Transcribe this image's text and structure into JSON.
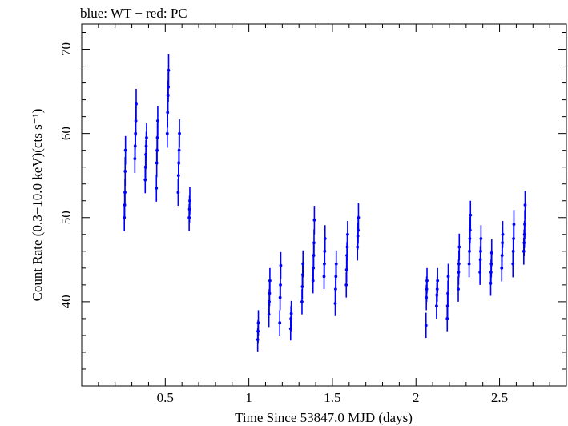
{
  "header": {
    "title": "blue: WT − red: PC"
  },
  "colors": {
    "wt": "#0000ff",
    "pc": "#ff0000",
    "axis": "#000000"
  },
  "chart_data": {
    "type": "scatter",
    "title": "blue: WT − red: PC",
    "xlabel": "Time Since 53847.0 MJD (days)",
    "ylabel": "Count Rate (0.3−10.0 keV)(cts s⁻¹)",
    "xlim": [
      0.0,
      2.9
    ],
    "ylim": [
      30.0,
      73.0
    ],
    "xticks": [
      {
        "value": 0.5,
        "label": "0.5"
      },
      {
        "value": 1.0,
        "label": "1"
      },
      {
        "value": 1.5,
        "label": "1.5"
      },
      {
        "value": 2.0,
        "label": "2"
      },
      {
        "value": 2.5,
        "label": "2.5"
      }
    ],
    "yticks": [
      {
        "value": 40,
        "label": "40"
      },
      {
        "value": 50,
        "label": "50"
      },
      {
        "value": 60,
        "label": "60"
      },
      {
        "value": 70,
        "label": "70"
      }
    ],
    "grid": false,
    "series": [
      {
        "name": "WT",
        "color": "#0000ff",
        "points": [
          {
            "x": 0.255,
            "y": 50.0,
            "err": 1.6
          },
          {
            "x": 0.257,
            "y": 51.5,
            "err": 1.6
          },
          {
            "x": 0.259,
            "y": 53.0,
            "err": 1.6
          },
          {
            "x": 0.26,
            "y": 55.5,
            "err": 1.7
          },
          {
            "x": 0.262,
            "y": 58.0,
            "err": 1.7
          },
          {
            "x": 0.318,
            "y": 57.0,
            "err": 1.7
          },
          {
            "x": 0.32,
            "y": 58.5,
            "err": 1.7
          },
          {
            "x": 0.322,
            "y": 60.0,
            "err": 1.7
          },
          {
            "x": 0.324,
            "y": 61.5,
            "err": 1.8
          },
          {
            "x": 0.326,
            "y": 63.5,
            "err": 1.8
          },
          {
            "x": 0.38,
            "y": 54.5,
            "err": 1.6
          },
          {
            "x": 0.382,
            "y": 56.0,
            "err": 1.7
          },
          {
            "x": 0.384,
            "y": 57.5,
            "err": 1.7
          },
          {
            "x": 0.386,
            "y": 58.5,
            "err": 1.7
          },
          {
            "x": 0.388,
            "y": 59.5,
            "err": 1.7
          },
          {
            "x": 0.447,
            "y": 53.5,
            "err": 1.6
          },
          {
            "x": 0.449,
            "y": 56.5,
            "err": 1.7
          },
          {
            "x": 0.451,
            "y": 58.0,
            "err": 1.7
          },
          {
            "x": 0.453,
            "y": 59.5,
            "err": 1.7
          },
          {
            "x": 0.455,
            "y": 61.5,
            "err": 1.8
          },
          {
            "x": 0.512,
            "y": 60.0,
            "err": 1.7
          },
          {
            "x": 0.514,
            "y": 62.5,
            "err": 1.8
          },
          {
            "x": 0.516,
            "y": 64.5,
            "err": 1.8
          },
          {
            "x": 0.518,
            "y": 65.5,
            "err": 1.8
          },
          {
            "x": 0.52,
            "y": 67.5,
            "err": 1.9
          },
          {
            "x": 0.577,
            "y": 53.0,
            "err": 1.6
          },
          {
            "x": 0.579,
            "y": 55.0,
            "err": 1.7
          },
          {
            "x": 0.581,
            "y": 56.5,
            "err": 1.7
          },
          {
            "x": 0.583,
            "y": 58.0,
            "err": 1.7
          },
          {
            "x": 0.585,
            "y": 60.0,
            "err": 1.7
          },
          {
            "x": 0.643,
            "y": 50.0,
            "err": 1.6
          },
          {
            "x": 0.645,
            "y": 51.0,
            "err": 1.6
          },
          {
            "x": 0.647,
            "y": 52.0,
            "err": 1.6
          },
          {
            "x": 1.053,
            "y": 35.5,
            "err": 1.4
          },
          {
            "x": 1.055,
            "y": 36.5,
            "err": 1.4
          },
          {
            "x": 1.057,
            "y": 37.5,
            "err": 1.5
          },
          {
            "x": 1.12,
            "y": 38.5,
            "err": 1.5
          },
          {
            "x": 1.122,
            "y": 40.0,
            "err": 1.5
          },
          {
            "x": 1.124,
            "y": 41.0,
            "err": 1.5
          },
          {
            "x": 1.126,
            "y": 42.5,
            "err": 1.5
          },
          {
            "x": 1.185,
            "y": 37.5,
            "err": 1.5
          },
          {
            "x": 1.187,
            "y": 40.5,
            "err": 1.5
          },
          {
            "x": 1.189,
            "y": 42.0,
            "err": 1.5
          },
          {
            "x": 1.191,
            "y": 44.3,
            "err": 1.6
          },
          {
            "x": 1.25,
            "y": 36.8,
            "err": 1.4
          },
          {
            "x": 1.252,
            "y": 38.0,
            "err": 1.5
          },
          {
            "x": 1.254,
            "y": 38.6,
            "err": 1.5
          },
          {
            "x": 1.318,
            "y": 40.0,
            "err": 1.5
          },
          {
            "x": 1.32,
            "y": 41.8,
            "err": 1.5
          },
          {
            "x": 1.322,
            "y": 43.2,
            "err": 1.5
          },
          {
            "x": 1.324,
            "y": 44.5,
            "err": 1.6
          },
          {
            "x": 1.384,
            "y": 42.5,
            "err": 1.5
          },
          {
            "x": 1.386,
            "y": 44.0,
            "err": 1.6
          },
          {
            "x": 1.388,
            "y": 45.5,
            "err": 1.6
          },
          {
            "x": 1.39,
            "y": 47.0,
            "err": 1.6
          },
          {
            "x": 1.392,
            "y": 49.7,
            "err": 1.7
          },
          {
            "x": 1.45,
            "y": 43.0,
            "err": 1.5
          },
          {
            "x": 1.452,
            "y": 44.5,
            "err": 1.6
          },
          {
            "x": 1.454,
            "y": 46.0,
            "err": 1.6
          },
          {
            "x": 1.456,
            "y": 47.5,
            "err": 1.6
          },
          {
            "x": 1.517,
            "y": 39.8,
            "err": 1.5
          },
          {
            "x": 1.519,
            "y": 41.5,
            "err": 1.5
          },
          {
            "x": 1.521,
            "y": 43.0,
            "err": 1.5
          },
          {
            "x": 1.523,
            "y": 44.5,
            "err": 1.6
          },
          {
            "x": 1.583,
            "y": 42.0,
            "err": 1.5
          },
          {
            "x": 1.585,
            "y": 43.8,
            "err": 1.5
          },
          {
            "x": 1.587,
            "y": 45.5,
            "err": 1.6
          },
          {
            "x": 1.589,
            "y": 46.5,
            "err": 1.6
          },
          {
            "x": 1.591,
            "y": 48.0,
            "err": 1.6
          },
          {
            "x": 1.65,
            "y": 46.5,
            "err": 1.6
          },
          {
            "x": 1.652,
            "y": 47.8,
            "err": 1.6
          },
          {
            "x": 1.654,
            "y": 48.5,
            "err": 1.6
          },
          {
            "x": 1.656,
            "y": 50.0,
            "err": 1.7
          },
          {
            "x": 2.06,
            "y": 37.2,
            "err": 1.5
          },
          {
            "x": 2.062,
            "y": 40.5,
            "err": 1.5
          },
          {
            "x": 2.064,
            "y": 41.5,
            "err": 1.5
          },
          {
            "x": 2.066,
            "y": 42.5,
            "err": 1.5
          },
          {
            "x": 2.123,
            "y": 39.5,
            "err": 1.5
          },
          {
            "x": 2.125,
            "y": 40.8,
            "err": 1.5
          },
          {
            "x": 2.127,
            "y": 41.5,
            "err": 1.5
          },
          {
            "x": 2.129,
            "y": 42.5,
            "err": 1.5
          },
          {
            "x": 2.187,
            "y": 38.0,
            "err": 1.5
          },
          {
            "x": 2.189,
            "y": 39.5,
            "err": 1.5
          },
          {
            "x": 2.191,
            "y": 41.0,
            "err": 1.5
          },
          {
            "x": 2.193,
            "y": 43.0,
            "err": 1.5
          },
          {
            "x": 2.253,
            "y": 41.5,
            "err": 1.5
          },
          {
            "x": 2.255,
            "y": 43.5,
            "err": 1.5
          },
          {
            "x": 2.257,
            "y": 44.5,
            "err": 1.6
          },
          {
            "x": 2.259,
            "y": 46.5,
            "err": 1.6
          },
          {
            "x": 2.318,
            "y": 44.5,
            "err": 1.6
          },
          {
            "x": 2.32,
            "y": 46.0,
            "err": 1.6
          },
          {
            "x": 2.322,
            "y": 47.5,
            "err": 1.6
          },
          {
            "x": 2.324,
            "y": 48.5,
            "err": 1.6
          },
          {
            "x": 2.326,
            "y": 50.3,
            "err": 1.7
          },
          {
            "x": 2.383,
            "y": 43.5,
            "err": 1.5
          },
          {
            "x": 2.385,
            "y": 45.0,
            "err": 1.6
          },
          {
            "x": 2.387,
            "y": 46.0,
            "err": 1.6
          },
          {
            "x": 2.389,
            "y": 47.5,
            "err": 1.6
          },
          {
            "x": 2.447,
            "y": 42.2,
            "err": 1.5
          },
          {
            "x": 2.449,
            "y": 43.5,
            "err": 1.5
          },
          {
            "x": 2.451,
            "y": 44.5,
            "err": 1.6
          },
          {
            "x": 2.453,
            "y": 45.8,
            "err": 1.6
          },
          {
            "x": 2.513,
            "y": 44.0,
            "err": 1.6
          },
          {
            "x": 2.515,
            "y": 45.5,
            "err": 1.6
          },
          {
            "x": 2.517,
            "y": 47.0,
            "err": 1.6
          },
          {
            "x": 2.519,
            "y": 48.0,
            "err": 1.6
          },
          {
            "x": 2.58,
            "y": 44.5,
            "err": 1.6
          },
          {
            "x": 2.582,
            "y": 46.0,
            "err": 1.6
          },
          {
            "x": 2.584,
            "y": 47.5,
            "err": 1.6
          },
          {
            "x": 2.586,
            "y": 49.2,
            "err": 1.7
          },
          {
            "x": 2.645,
            "y": 46.0,
            "err": 1.6
          },
          {
            "x": 2.647,
            "y": 47.0,
            "err": 1.6
          },
          {
            "x": 2.649,
            "y": 48.0,
            "err": 1.6
          },
          {
            "x": 2.651,
            "y": 49.2,
            "err": 1.7
          },
          {
            "x": 2.653,
            "y": 51.5,
            "err": 1.7
          }
        ]
      }
    ]
  }
}
